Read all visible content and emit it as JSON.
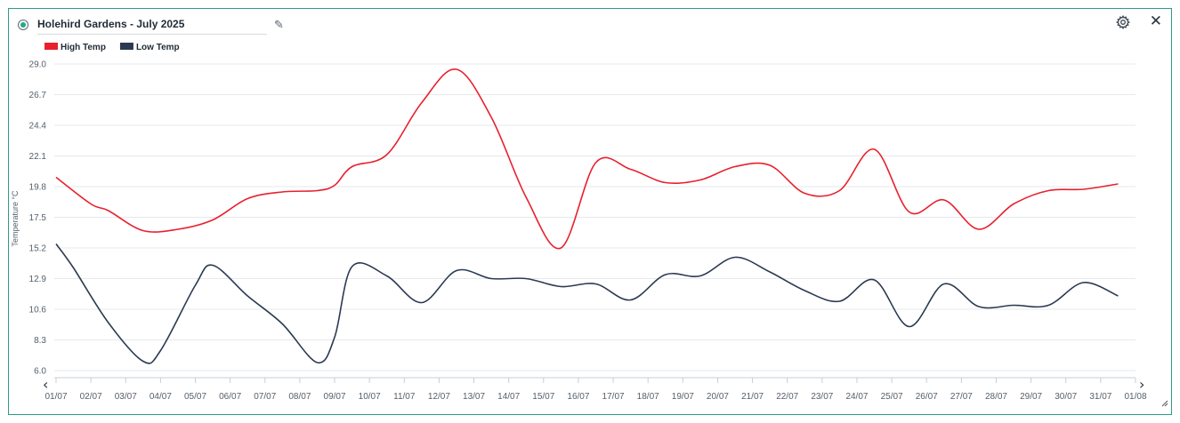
{
  "widget": {
    "title": "Holehird Gardens - July 2025",
    "icons": {
      "status": "status-dot-icon",
      "edit": "pencil-icon",
      "settings": "gear-icon",
      "close": "close-icon",
      "resize": "resize-handle-icon"
    },
    "close_glyph": "✕",
    "edit_glyph": "✎",
    "nav": {
      "prev_glyph": "‹",
      "next_glyph": "›"
    }
  },
  "chart_data": {
    "type": "line",
    "ylabel": "Temperature °C",
    "xlabel": "",
    "ylim": [
      6.0,
      29.0
    ],
    "yticks": [
      "29.0",
      "26.7",
      "24.4",
      "22.1",
      "19.8",
      "17.5",
      "15.2",
      "12.9",
      "10.6",
      "8.3",
      "6.0"
    ],
    "categories": [
      "01/07",
      "02/07",
      "03/07",
      "04/07",
      "05/07",
      "06/07",
      "07/07",
      "08/07",
      "09/07",
      "10/07",
      "11/07",
      "12/07",
      "13/07",
      "14/07",
      "15/07",
      "16/07",
      "17/07",
      "18/07",
      "19/07",
      "20/07",
      "21/07",
      "22/07",
      "23/07",
      "24/07",
      "25/07",
      "26/07",
      "27/07",
      "28/07",
      "29/07",
      "30/07",
      "31/07",
      "01/08"
    ],
    "legend_position": "top-left",
    "grid": true,
    "series": [
      {
        "name": "High Temp",
        "color": "#e8202e",
        "x": [
          "01/07",
          "02/07",
          "02/07 12:00",
          "03/07 12:00",
          "04/07 12:00",
          "05/07 12:00",
          "06/07 12:00",
          "07/07 12:00",
          "08/07 12:00",
          "09/07",
          "09/07 12:00",
          "10/07 12:00",
          "11/07 12:00",
          "12/07 12:00",
          "13/07 12:00",
          "14/07 12:00",
          "15/07 12:00",
          "16/07 12:00",
          "17/07 12:00",
          "18/07 12:00",
          "19/07 12:00",
          "20/07 12:00",
          "21/07 12:00",
          "22/07 12:00",
          "23/07 12:00",
          "24/07 12:00",
          "25/07 12:00",
          "26/07 12:00",
          "27/07 12:00",
          "28/07 12:00",
          "29/07 12:00",
          "30/07 12:00",
          "31/07 12:00"
        ],
        "values": [
          20.5,
          18.5,
          18.0,
          16.5,
          16.6,
          17.3,
          18.9,
          19.4,
          19.5,
          19.9,
          21.3,
          22.2,
          26.1,
          28.6,
          25.0,
          19.0,
          15.2,
          21.6,
          21.1,
          20.1,
          20.3,
          21.3,
          21.4,
          19.3,
          19.5,
          22.6,
          17.9,
          18.8,
          16.6,
          18.5,
          19.5,
          19.6,
          20.0
        ]
      },
      {
        "name": "Low Temp",
        "color": "#2b3a52",
        "x": [
          "01/07",
          "01/07 12:00",
          "02/07 12:00",
          "03/07 12:00",
          "04/07",
          "05/07",
          "05/07 12:00",
          "06/07 12:00",
          "07/07 12:00",
          "08/07 12:00",
          "09/07",
          "09/07 12:00",
          "10/07 12:00",
          "11/07 12:00",
          "12/07 12:00",
          "13/07 12:00",
          "14/07 12:00",
          "15/07 12:00",
          "16/07 12:00",
          "17/07 12:00",
          "18/07 12:00",
          "19/07 12:00",
          "20/07 12:00",
          "21/07 12:00",
          "22/07 12:00",
          "23/07 12:00",
          "24/07 12:00",
          "25/07 12:00",
          "26/07 12:00",
          "27/07 12:00",
          "28/07 12:00",
          "29/07 12:00",
          "30/07 12:00",
          "31/07 12:00"
        ],
        "values": [
          15.5,
          13.7,
          9.6,
          6.7,
          7.5,
          12.4,
          13.9,
          11.6,
          9.5,
          6.6,
          8.5,
          13.8,
          13.1,
          11.1,
          13.5,
          12.9,
          12.9,
          12.3,
          12.5,
          11.3,
          13.2,
          13.1,
          14.5,
          13.4,
          12.0,
          11.2,
          12.8,
          9.3,
          12.5,
          10.8,
          10.9,
          10.9,
          12.6,
          11.6
        ]
      }
    ]
  }
}
